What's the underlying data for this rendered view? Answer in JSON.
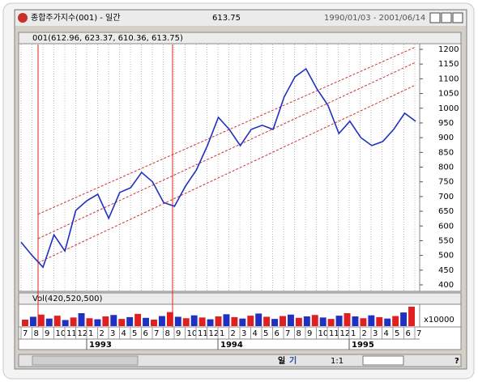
{
  "window": {
    "title": "종합주가지수(001) - 일간",
    "price": "613.75",
    "range": "1990/01/03 - 2001/06/14"
  },
  "price_pane": {
    "header": "001(612.96, 623.37, 610.36, 613.75)",
    "values": [
      545,
      500,
      460,
      570,
      515,
      653,
      686,
      708,
      626,
      714,
      730,
      782,
      750,
      680,
      667,
      735,
      790,
      873,
      969,
      928,
      873,
      928,
      942,
      928,
      1038,
      1107,
      1134,
      1065,
      1010,
      914,
      956,
      900,
      873,
      887,
      928,
      983,
      956
    ],
    "ylim": [
      400,
      1200
    ],
    "yticks": [
      400,
      450,
      500,
      550,
      600,
      650,
      700,
      750,
      800,
      850,
      900,
      950,
      1000,
      1050,
      1100,
      1150,
      1200
    ],
    "trend_lines": [
      {
        "start": 640,
        "end": 1208
      },
      {
        "start": 557,
        "end": 1156
      },
      {
        "start": 475,
        "end": 1079
      }
    ]
  },
  "volume_pane": {
    "header": "Vol(420,520,500)",
    "unit": "x10000",
    "values": [
      1800,
      2600,
      3200,
      2100,
      2900,
      1700,
      2400,
      3600,
      2200,
      1900,
      2700,
      3100,
      2000,
      2500,
      3400,
      2300,
      1800,
      2800,
      3900,
      2600,
      2200,
      3000,
      2400,
      1900,
      2700,
      3300,
      2500,
      2100,
      2900,
      3500,
      2600,
      2000,
      2800,
      3200,
      2300,
      2700,
      3100,
      2400,
      2000,
      2900,
      3600,
      2700,
      2200,
      3000,
      2500,
      2100,
      2800,
      3800,
      5400
    ]
  },
  "months": [
    "7",
    "8",
    "9",
    "10",
    "11",
    "12",
    "1",
    "2",
    "3",
    "4",
    "5",
    "6",
    "7",
    "8",
    "9",
    "10",
    "11",
    "12",
    "1",
    "2",
    "3",
    "4",
    "5",
    "6",
    "7",
    "8",
    "9",
    "10",
    "11",
    "12",
    "1",
    "2",
    "3",
    "4",
    "5",
    "6",
    "7"
  ],
  "years": [
    {
      "label": "1993",
      "month": 6
    },
    {
      "label": "1994",
      "month": 18
    },
    {
      "label": "1995",
      "month": 30
    }
  ],
  "buttons": [
    "일",
    "기",
    "1:1",
    "?"
  ]
}
